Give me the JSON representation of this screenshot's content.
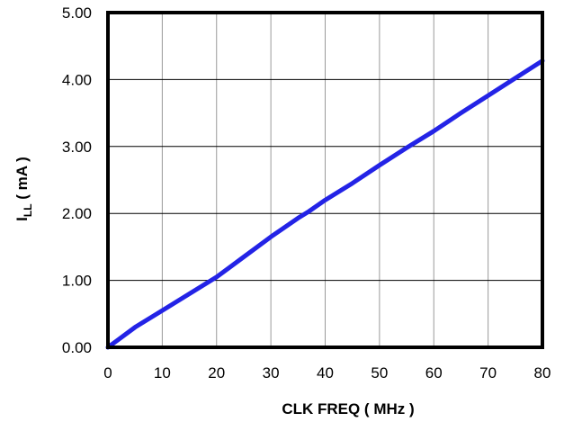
{
  "chart_data": {
    "type": "line",
    "title": "",
    "xlabel": "CLK FREQ  ( MHz )",
    "ylabel": {
      "main": "I",
      "subscript": "LL",
      "suffix": " ( mA )"
    },
    "xlim": [
      0,
      80
    ],
    "ylim": [
      0,
      5
    ],
    "x_ticks": [
      0,
      10,
      20,
      30,
      40,
      50,
      60,
      70,
      80
    ],
    "y_ticks": [
      0,
      1,
      2,
      3,
      4,
      5
    ],
    "x_tick_labels": [
      "0",
      "10",
      "20",
      "30",
      "40",
      "50",
      "60",
      "70",
      "80"
    ],
    "y_tick_labels": [
      "0.00",
      "1.00",
      "2.00",
      "3.00",
      "4.00",
      "5.00"
    ],
    "grid": true,
    "legend": "none",
    "series": [
      {
        "color": "#2323e6",
        "x": [
          0,
          5,
          10,
          15,
          20,
          25,
          30,
          35,
          37,
          40,
          45,
          50,
          55,
          60,
          65,
          70,
          75,
          80
        ],
        "y": [
          0.0,
          0.3,
          0.55,
          0.8,
          1.05,
          1.35,
          1.65,
          1.93,
          2.03,
          2.2,
          2.45,
          2.72,
          2.98,
          3.23,
          3.5,
          3.76,
          4.02,
          4.28
        ]
      }
    ]
  }
}
